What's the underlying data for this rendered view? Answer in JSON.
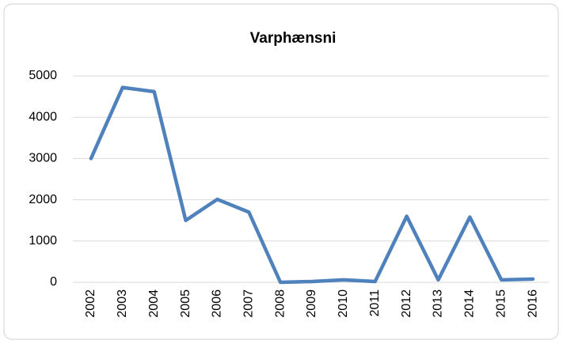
{
  "chart_data": {
    "type": "line",
    "title": "Varphænsni",
    "categories": [
      "2002",
      "2003",
      "2004",
      "2005",
      "2006",
      "2007",
      "2008",
      "2009",
      "2010",
      "2011",
      "2012",
      "2013",
      "2014",
      "2015",
      "2016"
    ],
    "series": [
      {
        "color": "#4f81bd",
        "values": [
          3000,
          4720,
          4620,
          1500,
          2010,
          1700,
          0,
          20,
          60,
          20,
          1600,
          60,
          1580,
          60,
          80
        ]
      }
    ],
    "ylim": [
      0,
      5000
    ],
    "yticks": [
      0,
      1000,
      2000,
      3000,
      4000,
      5000
    ],
    "grid": true
  }
}
